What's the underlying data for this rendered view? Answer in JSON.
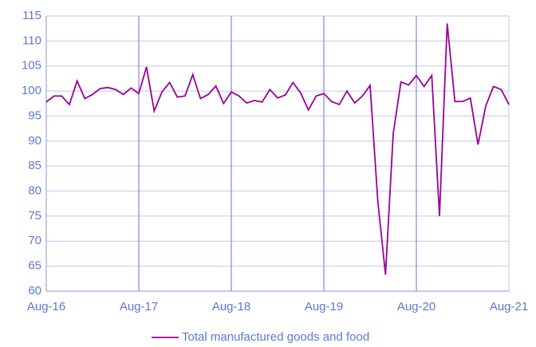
{
  "chart_data": {
    "type": "line",
    "categories": [
      "Aug-16",
      null,
      null,
      null,
      null,
      null,
      null,
      null,
      null,
      null,
      null,
      null,
      "Aug-17",
      null,
      null,
      null,
      null,
      null,
      null,
      null,
      null,
      null,
      null,
      null,
      "Aug-18",
      null,
      null,
      null,
      null,
      null,
      null,
      null,
      null,
      null,
      null,
      null,
      "Aug-19",
      null,
      null,
      null,
      null,
      null,
      null,
      null,
      null,
      null,
      null,
      null,
      "Aug-20",
      null,
      null,
      null,
      null,
      null,
      null,
      null,
      null,
      null,
      null,
      null,
      "Aug-21"
    ],
    "series": [
      {
        "name": "Total manufactured goods and food",
        "color": "#990099",
        "values": [
          97.8,
          99,
          99,
          97.3,
          102,
          98.5,
          99.3,
          100.5,
          100.7,
          100.3,
          99.3,
          100.6,
          99.5,
          104.8,
          96,
          99.8,
          101.7,
          98.8,
          99,
          103.3,
          98.5,
          99.3,
          101,
          97.5,
          99.8,
          99,
          97.6,
          98.1,
          97.8,
          100.3,
          98.6,
          99.2,
          101.7,
          99.6,
          96.2,
          99,
          99.5,
          97.9,
          97.3,
          100,
          97.6,
          99,
          101.1,
          78,
          63.3,
          91.5,
          101.8,
          101.2,
          103.1,
          100.9,
          103.1,
          75,
          113.5,
          97.9,
          97.9,
          98.6,
          89.3,
          97,
          100.9,
          100.3,
          97.3
        ]
      }
    ],
    "ylim": [
      60,
      115
    ],
    "yticks": [
      60,
      65,
      70,
      75,
      80,
      85,
      90,
      95,
      100,
      105,
      110,
      115
    ],
    "grid": true,
    "legend": "bottom"
  }
}
